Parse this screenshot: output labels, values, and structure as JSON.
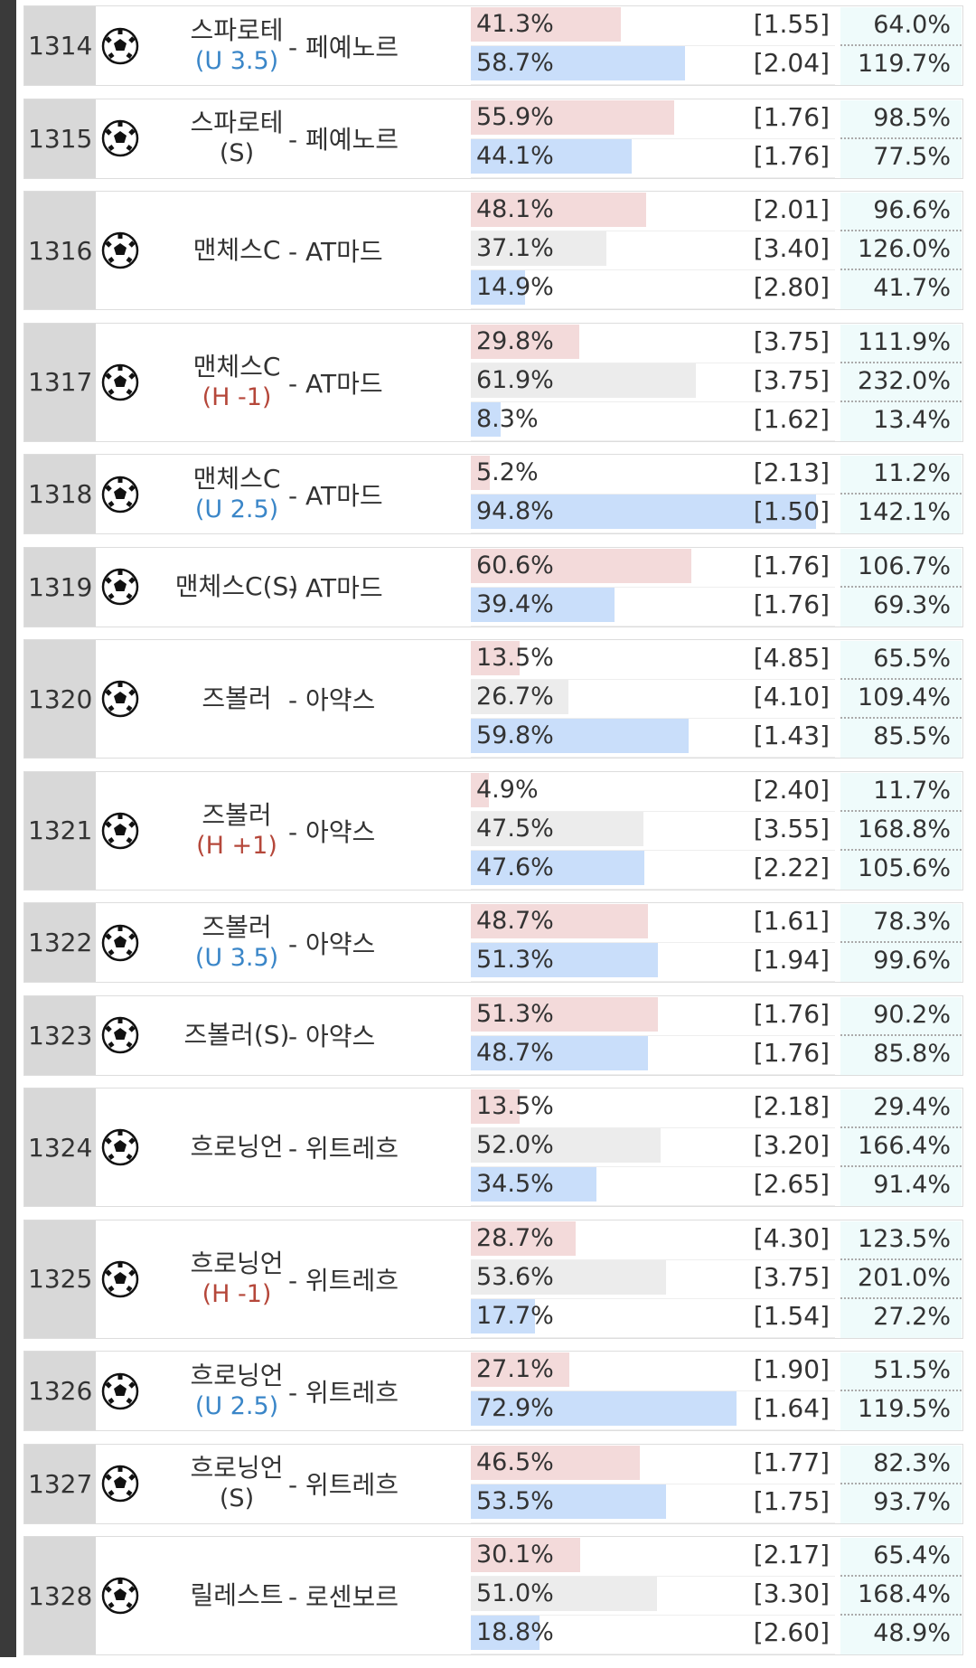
{
  "matches": [
    {
      "no": "1314",
      "home": "스파로테",
      "handicap": "(U 3.5)",
      "away": "- 페예노르",
      "outcomes": [
        {
          "pct": 41.3,
          "pct_label": "41.3%",
          "odds": "[1.55]",
          "ret": "64.0%"
        },
        {
          "pct": 58.7,
          "pct_label": "58.7%",
          "odds": "[2.04]",
          "ret": "119.7%"
        }
      ]
    },
    {
      "no": "1315",
      "home": "스파로테",
      "handicap": "(S)",
      "away": "- 페예노르",
      "outcomes": [
        {
          "pct": 55.9,
          "pct_label": "55.9%",
          "odds": "[1.76]",
          "ret": "98.5%"
        },
        {
          "pct": 44.1,
          "pct_label": "44.1%",
          "odds": "[1.76]",
          "ret": "77.5%"
        }
      ]
    },
    {
      "no": "1316",
      "home": "맨체스C",
      "away": "- AT마드",
      "outcomes": [
        {
          "pct": 48.1,
          "pct_label": "48.1%",
          "odds": "[2.01]",
          "ret": "96.6%"
        },
        {
          "pct": 37.1,
          "pct_label": "37.1%",
          "odds": "[3.40]",
          "ret": "126.0%"
        },
        {
          "pct": 14.9,
          "pct_label": "14.9%",
          "odds": "[2.80]",
          "ret": "41.7%"
        }
      ]
    },
    {
      "no": "1317",
      "home": "맨체스C",
      "handicap": "(H -1)",
      "away": "- AT마드",
      "outcomes": [
        {
          "pct": 29.8,
          "pct_label": "29.8%",
          "odds": "[3.75]",
          "ret": "111.9%"
        },
        {
          "pct": 61.9,
          "pct_label": "61.9%",
          "odds": "[3.75]",
          "ret": "232.0%"
        },
        {
          "pct": 8.3,
          "pct_label": "8.3%",
          "odds": "[1.62]",
          "ret": "13.4%"
        }
      ]
    },
    {
      "no": "1318",
      "home": "맨체스C",
      "handicap": "(U 2.5)",
      "away": "- AT마드",
      "outcomes": [
        {
          "pct": 5.2,
          "pct_label": "5.2%",
          "odds": "[2.13]",
          "ret": "11.2%"
        },
        {
          "pct": 94.8,
          "pct_label": "94.8%",
          "odds": "[1.50]",
          "ret": "142.1%"
        }
      ]
    },
    {
      "no": "1319",
      "home": "맨체스C(S)",
      "away": "- AT마드",
      "outcomes": [
        {
          "pct": 60.6,
          "pct_label": "60.6%",
          "odds": "[1.76]",
          "ret": "106.7%"
        },
        {
          "pct": 39.4,
          "pct_label": "39.4%",
          "odds": "[1.76]",
          "ret": "69.3%"
        }
      ]
    },
    {
      "no": "1320",
      "home": "즈볼러",
      "away": "- 아약스",
      "outcomes": [
        {
          "pct": 13.5,
          "pct_label": "13.5%",
          "odds": "[4.85]",
          "ret": "65.5%"
        },
        {
          "pct": 26.7,
          "pct_label": "26.7%",
          "odds": "[4.10]",
          "ret": "109.4%"
        },
        {
          "pct": 59.8,
          "pct_label": "59.8%",
          "odds": "[1.43]",
          "ret": "85.5%"
        }
      ]
    },
    {
      "no": "1321",
      "home": "즈볼러",
      "handicap": "(H +1)",
      "away": "- 아약스",
      "outcomes": [
        {
          "pct": 4.9,
          "pct_label": "4.9%",
          "odds": "[2.40]",
          "ret": "11.7%"
        },
        {
          "pct": 47.5,
          "pct_label": "47.5%",
          "odds": "[3.55]",
          "ret": "168.8%"
        },
        {
          "pct": 47.6,
          "pct_label": "47.6%",
          "odds": "[2.22]",
          "ret": "105.6%"
        }
      ]
    },
    {
      "no": "1322",
      "home": "즈볼러",
      "handicap": "(U 3.5)",
      "away": "- 아약스",
      "outcomes": [
        {
          "pct": 48.7,
          "pct_label": "48.7%",
          "odds": "[1.61]",
          "ret": "78.3%"
        },
        {
          "pct": 51.3,
          "pct_label": "51.3%",
          "odds": "[1.94]",
          "ret": "99.6%"
        }
      ]
    },
    {
      "no": "1323",
      "home": "즈볼러(S)",
      "away": "- 아약스",
      "outcomes": [
        {
          "pct": 51.3,
          "pct_label": "51.3%",
          "odds": "[1.76]",
          "ret": "90.2%"
        },
        {
          "pct": 48.7,
          "pct_label": "48.7%",
          "odds": "[1.76]",
          "ret": "85.8%"
        }
      ]
    },
    {
      "no": "1324",
      "home": "흐로닝언",
      "away": "- 위트레흐",
      "outcomes": [
        {
          "pct": 13.5,
          "pct_label": "13.5%",
          "odds": "[2.18]",
          "ret": "29.4%"
        },
        {
          "pct": 52.0,
          "pct_label": "52.0%",
          "odds": "[3.20]",
          "ret": "166.4%"
        },
        {
          "pct": 34.5,
          "pct_label": "34.5%",
          "odds": "[2.65]",
          "ret": "91.4%"
        }
      ]
    },
    {
      "no": "1325",
      "home": "흐로닝언",
      "handicap": "(H -1)",
      "away": "- 위트레흐",
      "outcomes": [
        {
          "pct": 28.7,
          "pct_label": "28.7%",
          "odds": "[4.30]",
          "ret": "123.5%"
        },
        {
          "pct": 53.6,
          "pct_label": "53.6%",
          "odds": "[3.75]",
          "ret": "201.0%"
        },
        {
          "pct": 17.7,
          "pct_label": "17.7%",
          "odds": "[1.54]",
          "ret": "27.2%"
        }
      ]
    },
    {
      "no": "1326",
      "home": "흐로닝언",
      "handicap": "(U 2.5)",
      "away": "- 위트레흐",
      "outcomes": [
        {
          "pct": 27.1,
          "pct_label": "27.1%",
          "odds": "[1.90]",
          "ret": "51.5%"
        },
        {
          "pct": 72.9,
          "pct_label": "72.9%",
          "odds": "[1.64]",
          "ret": "119.5%"
        }
      ]
    },
    {
      "no": "1327",
      "home": "흐로닝언",
      "handicap": "(S)",
      "away": "- 위트레흐",
      "outcomes": [
        {
          "pct": 46.5,
          "pct_label": "46.5%",
          "odds": "[1.77]",
          "ret": "82.3%"
        },
        {
          "pct": 53.5,
          "pct_label": "53.5%",
          "odds": "[1.75]",
          "ret": "93.7%"
        }
      ]
    },
    {
      "no": "1328",
      "home": "릴레스트",
      "away": "- 로센보르",
      "outcomes": [
        {
          "pct": 30.1,
          "pct_label": "30.1%",
          "odds": "[2.17]",
          "ret": "65.4%"
        },
        {
          "pct": 51.0,
          "pct_label": "51.0%",
          "odds": "[3.30]",
          "ret": "168.4%"
        },
        {
          "pct": 18.8,
          "pct_label": "18.8%",
          "odds": "[2.60]",
          "ret": "48.9%"
        }
      ]
    }
  ]
}
